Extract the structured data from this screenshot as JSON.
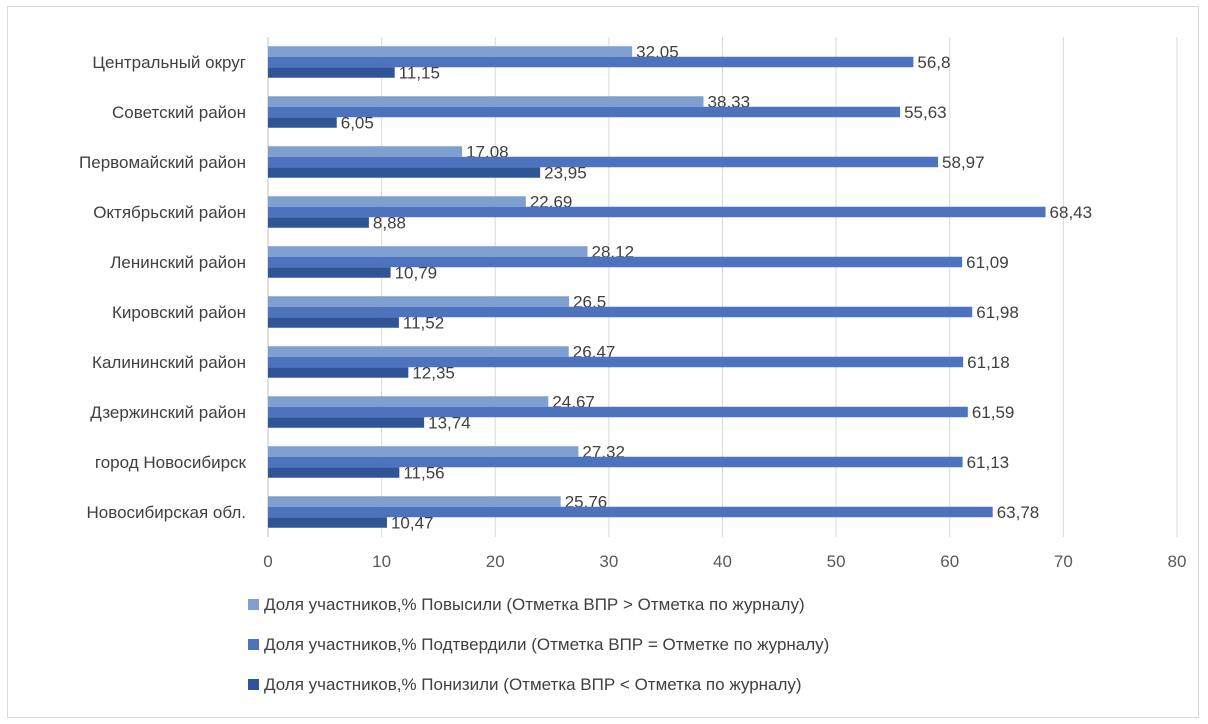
{
  "chart_data": {
    "type": "bar",
    "orientation": "horizontal",
    "categories": [
      "Центральный округ",
      "Советский район",
      "Первомайский район",
      "Октябрьский район",
      "Ленинский район",
      "Кировский район",
      "Калининский район",
      "Дзержинский район",
      "город Новосибирск",
      "Новосибирская обл."
    ],
    "series": [
      {
        "name": "Доля участников,% Повысили (Отметка ВПР > Отметка по журналу)",
        "color": "#7f9fd1",
        "values": [
          32.05,
          38.33,
          17.08,
          22.69,
          28.12,
          26.5,
          26.47,
          24.67,
          27.32,
          25.76
        ],
        "labels": [
          "32,05",
          "38,33",
          "17,08",
          "22,69",
          "28,12",
          "26,5",
          "26,47",
          "24,67",
          "27,32",
          "25,76"
        ]
      },
      {
        "name": "Доля участников,% Подтвердили (Отметка ВПР = Отметке по журналу)",
        "color": "#4d73be",
        "values": [
          56.8,
          55.63,
          58.97,
          68.43,
          61.09,
          61.98,
          61.18,
          61.59,
          61.13,
          63.78
        ],
        "labels": [
          "56,8",
          "55,63",
          "58,97",
          "68,43",
          "61,09",
          "61,98",
          "61,18",
          "61,59",
          "61,13",
          "63,78"
        ]
      },
      {
        "name": "Доля участников,% Понизили (Отметка ВПР < Отметка по журналу)",
        "color": "#2f5597",
        "values": [
          11.15,
          6.05,
          23.95,
          8.88,
          10.79,
          11.52,
          12.35,
          13.74,
          11.56,
          10.47
        ],
        "labels": [
          "11,15",
          "6,05",
          "23,95",
          "8,88",
          "10,79",
          "11,52",
          "12,35",
          "13,74",
          "11,56",
          "10,47"
        ]
      }
    ],
    "xlim": [
      0,
      80
    ],
    "xticks": [
      "0",
      "10",
      "20",
      "30",
      "40",
      "50",
      "60",
      "70",
      "80"
    ],
    "grid": true,
    "legend": "bottom",
    "title": "",
    "xlabel": "",
    "ylabel": ""
  }
}
